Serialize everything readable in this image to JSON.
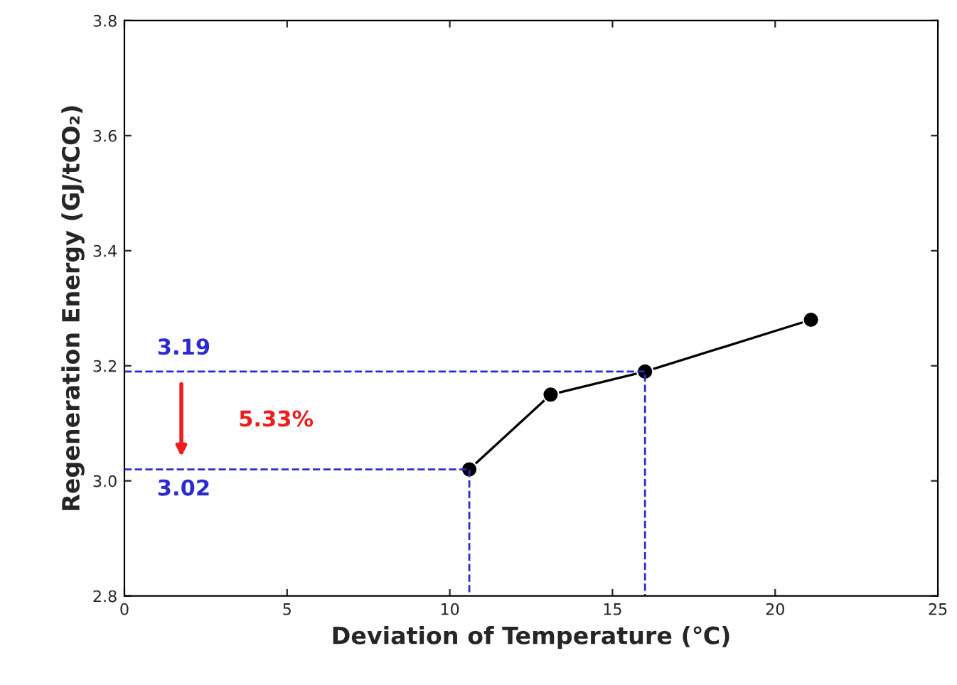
{
  "chart_data": {
    "type": "line",
    "xlabel": "Deviation of Temperature (℃)",
    "ylabel": "Regeneration Energy (GJ/tCO₂)",
    "xlim": [
      0,
      25
    ],
    "xticks": [
      0,
      5,
      10,
      15,
      20,
      25
    ],
    "ylim": [
      2.8,
      3.8
    ],
    "yticks": [
      {
        "value": 2.8,
        "label": "2.8"
      },
      {
        "value": 3.0,
        "label": "3.0"
      },
      {
        "value": 3.2,
        "label": "3.2"
      },
      {
        "value": 3.4,
        "label": "3.4"
      },
      {
        "value": 3.6,
        "label": "3.6"
      },
      {
        "value": 3.8,
        "label": "3.8"
      }
    ],
    "series": [
      {
        "color": "#000000",
        "x": [
          10.6,
          13.1,
          16.0,
          21.1
        ],
        "values": [
          3.02,
          3.15,
          3.19,
          3.28
        ],
        "marker": "circle",
        "line_style": "solid"
      },
      {
        "color": "#2b2bd0",
        "x": [
          0,
          16.0,
          16.0
        ],
        "values": [
          3.19,
          3.19,
          2.8
        ],
        "marker": "none",
        "line_style": "dashed"
      },
      {
        "color": "#2b2bd0",
        "x": [
          0,
          10.6,
          10.6
        ],
        "values": [
          3.02,
          3.02,
          2.8
        ],
        "marker": "none",
        "line_style": "dashed"
      }
    ],
    "annotations": [
      "3.19",
      "3.02",
      "5.33%"
    ],
    "grid": false,
    "legend": false
  }
}
